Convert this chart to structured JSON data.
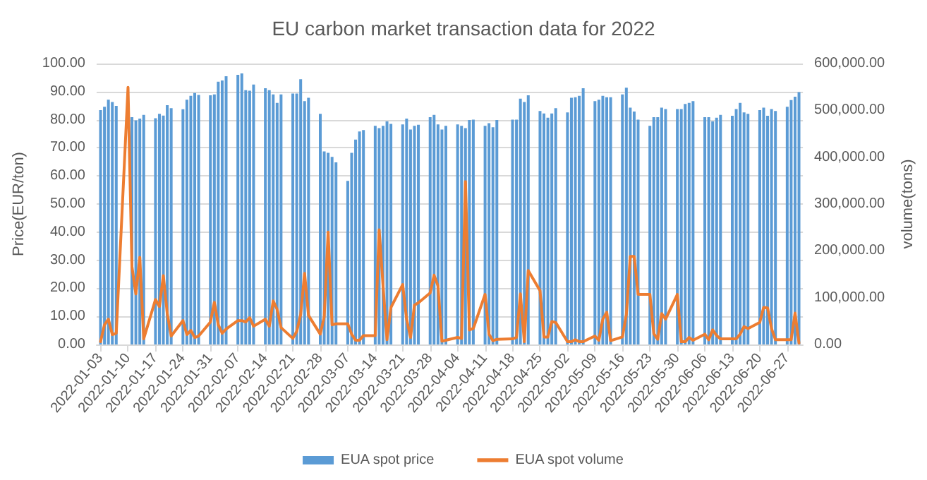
{
  "chart_data": {
    "type": "bar",
    "title": "EU carbon market transaction data for 2022",
    "ylabel": "Price(EUR/ton)",
    "y2label": "volume(tons)",
    "x": [
      "2022-01-03",
      "2022-01-04",
      "2022-01-05",
      "2022-01-06",
      "2022-01-07",
      "2022-01-10",
      "2022-01-11",
      "2022-01-12",
      "2022-01-13",
      "2022-01-14",
      "2022-01-17",
      "2022-01-18",
      "2022-01-19",
      "2022-01-20",
      "2022-01-21",
      "2022-01-24",
      "2022-01-25",
      "2022-01-26",
      "2022-01-27",
      "2022-01-28",
      "2022-01-31",
      "2022-02-01",
      "2022-02-02",
      "2022-02-03",
      "2022-02-04",
      "2022-02-07",
      "2022-02-08",
      "2022-02-09",
      "2022-02-10",
      "2022-02-11",
      "2022-02-14",
      "2022-02-15",
      "2022-02-16",
      "2022-02-17",
      "2022-02-18",
      "2022-02-21",
      "2022-02-22",
      "2022-02-23",
      "2022-02-24",
      "2022-02-25",
      "2022-02-28",
      "2022-03-01",
      "2022-03-02",
      "2022-03-03",
      "2022-03-04",
      "2022-03-07",
      "2022-03-08",
      "2022-03-09",
      "2022-03-10",
      "2022-03-11",
      "2022-03-14",
      "2022-03-15",
      "2022-03-16",
      "2022-03-17",
      "2022-03-18",
      "2022-03-21",
      "2022-03-22",
      "2022-03-23",
      "2022-03-24",
      "2022-03-25",
      "2022-03-28",
      "2022-03-29",
      "2022-03-30",
      "2022-03-31",
      "2022-04-01",
      "2022-04-04",
      "2022-04-05",
      "2022-04-06",
      "2022-04-07",
      "2022-04-08",
      "2022-04-11",
      "2022-04-12",
      "2022-04-13",
      "2022-04-14",
      "2022-04-18",
      "2022-04-19",
      "2022-04-20",
      "2022-04-21",
      "2022-04-22",
      "2022-04-25",
      "2022-04-26",
      "2022-04-27",
      "2022-04-28",
      "2022-04-29",
      "2022-05-02",
      "2022-05-03",
      "2022-05-04",
      "2022-05-05",
      "2022-05-06",
      "2022-05-09",
      "2022-05-10",
      "2022-05-11",
      "2022-05-12",
      "2022-05-13",
      "2022-05-16",
      "2022-05-17",
      "2022-05-18",
      "2022-05-19",
      "2022-05-20",
      "2022-05-23",
      "2022-05-24",
      "2022-05-25",
      "2022-05-26",
      "2022-05-27",
      "2022-05-30",
      "2022-05-31",
      "2022-06-01",
      "2022-06-02",
      "2022-06-03",
      "2022-06-06",
      "2022-06-07",
      "2022-06-08",
      "2022-06-09",
      "2022-06-10",
      "2022-06-13",
      "2022-06-14",
      "2022-06-15",
      "2022-06-16",
      "2022-06-17",
      "2022-06-20",
      "2022-06-21",
      "2022-06-22",
      "2022-06-23",
      "2022-06-24",
      "2022-06-27",
      "2022-06-28",
      "2022-06-29",
      "2022-06-30"
    ],
    "series": [
      {
        "name": "EUA spot price",
        "color": "#5b9bd5",
        "values": [
          83.4,
          84.6,
          87.1,
          86.3,
          84.9,
          null,
          80.9,
          79.8,
          80.4,
          81.7,
          80.5,
          82.1,
          81.5,
          85.2,
          84.1,
          83.7,
          87.1,
          88.5,
          89.5,
          88.8,
          88.7,
          89,
          93.5,
          94,
          95.5,
          96,
          96.5,
          90.5,
          90.3,
          92.5,
          91.2,
          90.5,
          89,
          86,
          89,
          89.3,
          89.3,
          94.4,
          86.6,
          87.8,
          82.1,
          68.7,
          68.2,
          66.8,
          64.8,
          58.2,
          68.2,
          72.9,
          75.8,
          76.3,
          77.8,
          77,
          77.8,
          79.4,
          78.5,
          78.3,
          80.4,
          76.5,
          77.8,
          78.2,
          80.9,
          81.7,
          78.3,
          76.5,
          77.8,
          78.3,
          77.8,
          77,
          79.9,
          80,
          77.8,
          78.8,
          77.3,
          79.9,
          80,
          80,
          87.5,
          86.3,
          88.7,
          83.1,
          82.2,
          80.7,
          82.2,
          84.1,
          82.6,
          87.8,
          88,
          88.5,
          91.2,
          86.6,
          87.1,
          88.5,
          88,
          88,
          89,
          91.4,
          84.3,
          82.9,
          80,
          77.8,
          80.9,
          80.9,
          84.3,
          83.8,
          83.8,
          83.8,
          85.6,
          86,
          86.6,
          80.9,
          80.9,
          79.4,
          80.7,
          81.7,
          81.4,
          83.8,
          86,
          82.6,
          82.1,
          83.4,
          84.3,
          81.4,
          83.8,
          83.1,
          84.6,
          87,
          88.2,
          89.8
        ]
      },
      {
        "name": "EUA spot volume",
        "type": "line",
        "axis": "y2",
        "color": "#ed7d31",
        "values": [
          6000,
          42000,
          54000,
          21000,
          24000,
          549000,
          166000,
          108000,
          186000,
          12000,
          96000,
          81000,
          147000,
          66000,
          18000,
          51000,
          21000,
          30000,
          15000,
          18000,
          48000,
          90000,
          42000,
          24000,
          33000,
          51000,
          51000,
          48000,
          57000,
          39000,
          54000,
          39000,
          93000,
          75000,
          36000,
          13000,
          28000,
          64000,
          152000,
          62000,
          22000,
          59000,
          240000,
          42000,
          44000,
          44000,
          22000,
          9000,
          9000,
          19000,
          19000,
          245000,
          125000,
          10000,
          79000,
          128000,
          54000,
          15000,
          84000,
          89000,
          110000,
          148000,
          125000,
          7000,
          9000,
          15000,
          13000,
          348000,
          31000,
          34000,
          107000,
          22000,
          8000,
          11000,
          12000,
          15000,
          108000,
          6000,
          158000,
          115000,
          16000,
          16000,
          49000,
          47000,
          6000,
          6000,
          10000,
          6000,
          6000,
          18000,
          9000,
          54000,
          69000,
          8000,
          16000,
          64000,
          188000,
          188000,
          107000,
          107000,
          23000,
          11000,
          66000,
          54000,
          107000,
          6000,
          6000,
          15000,
          9000,
          22000,
          10000,
          31000,
          19000,
          12000,
          12000,
          12000,
          22000,
          38000,
          34000,
          47000,
          79000,
          78000,
          34000,
          10000,
          10000,
          10000,
          67000,
          3000
        ]
      }
    ],
    "xlim": [
      "2022-01-02",
      "2022-07-01"
    ],
    "xticks": [
      "2022-01-03",
      "2022-01-10",
      "2022-01-17",
      "2022-01-24",
      "2022-01-31",
      "2022-02-07",
      "2022-02-14",
      "2022-02-21",
      "2022-02-28",
      "2022-03-07",
      "2022-03-14",
      "2022-03-21",
      "2022-03-28",
      "2022-04-04",
      "2022-04-11",
      "2022-04-18",
      "2022-04-25",
      "2022-05-02",
      "2022-05-09",
      "2022-05-16",
      "2022-05-23",
      "2022-05-30",
      "2022-06-06",
      "2022-06-13",
      "2022-06-20",
      "2022-06-27"
    ],
    "ylim": [
      0,
      100
    ],
    "yticks": [
      {
        "value": 0,
        "label": "0.00"
      },
      {
        "value": 10,
        "label": "10.00"
      },
      {
        "value": 20,
        "label": "20.00"
      },
      {
        "value": 30,
        "label": "30.00"
      },
      {
        "value": 40,
        "label": "40.00"
      },
      {
        "value": 50,
        "label": "50.00"
      },
      {
        "value": 60,
        "label": "60.00"
      },
      {
        "value": 70,
        "label": "70.00"
      },
      {
        "value": 80,
        "label": "80.00"
      },
      {
        "value": 90,
        "label": "90.00"
      },
      {
        "value": 100,
        "label": "100.00"
      }
    ],
    "y2lim": [
      0,
      600000
    ],
    "y2ticks": [
      {
        "value": 0,
        "label": "0.00"
      },
      {
        "value": 100000,
        "label": "100,000.00"
      },
      {
        "value": 200000,
        "label": "200,000.00"
      },
      {
        "value": 300000,
        "label": "300,000.00"
      },
      {
        "value": 400000,
        "label": "400,000.00"
      },
      {
        "value": 500000,
        "label": "500,000.00"
      },
      {
        "value": 600000,
        "label": "600,000.00"
      }
    ],
    "grid": "y",
    "legend": "bottom",
    "marker": "none",
    "line_style": "solid"
  }
}
